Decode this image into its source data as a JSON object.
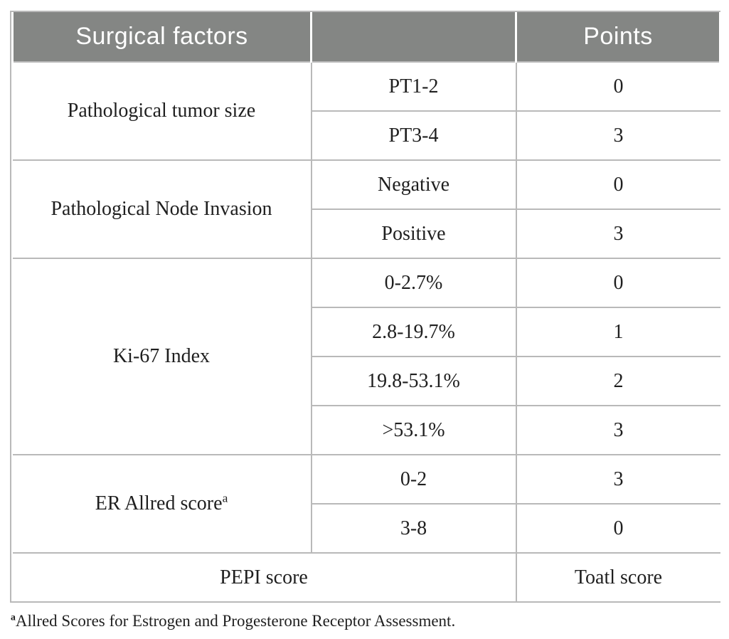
{
  "table": {
    "header": {
      "surgical_factors": "Surgical factors",
      "middle": "",
      "points": "Points"
    },
    "sections": [
      {
        "factor": "Pathological tumor size",
        "rows": [
          {
            "value": "PT1-2",
            "points": "0"
          },
          {
            "value": "PT3-4",
            "points": "3"
          }
        ]
      },
      {
        "factor": "Pathological Node Invasion",
        "rows": [
          {
            "value": "Negative",
            "points": "0"
          },
          {
            "value": "Positive",
            "points": "3"
          }
        ]
      },
      {
        "factor": "Ki-67 Index",
        "rows": [
          {
            "value": "0-2.7%",
            "points": "0"
          },
          {
            "value": "2.8-19.7%",
            "points": "1"
          },
          {
            "value": "19.8-53.1%",
            "points": "2"
          },
          {
            "value": ">53.1%",
            "points": "3"
          }
        ]
      },
      {
        "factor": "ER Allred score",
        "factor_sup": "a",
        "rows": [
          {
            "value": "0-2",
            "points": "3"
          },
          {
            "value": "3-8",
            "points": "0"
          }
        ]
      }
    ],
    "total_row": {
      "label": "PEPI score",
      "points_label": "Toatl score"
    },
    "footnote": {
      "marker": "a",
      "text": "Allred Scores for Estrogen and Progesterone Receptor Assessment."
    }
  },
  "colors": {
    "header_bg": "#848684",
    "header_text": "#ffffff",
    "border": "#b9b9b9",
    "body_text": "#1f1f1f",
    "background": "#ffffff"
  }
}
